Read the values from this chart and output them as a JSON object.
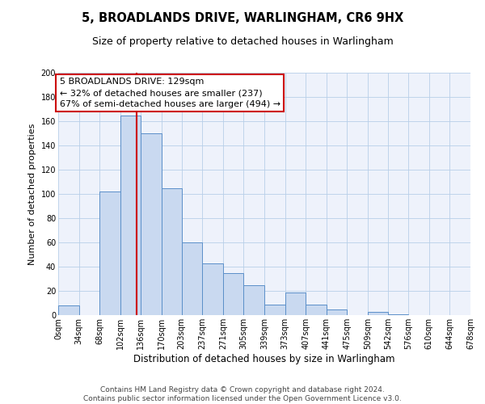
{
  "title": "5, BROADLANDS DRIVE, WARLINGHAM, CR6 9HX",
  "subtitle": "Size of property relative to detached houses in Warlingham",
  "xlabel": "Distribution of detached houses by size in Warlingham",
  "ylabel": "Number of detached properties",
  "bin_edges": [
    0,
    34,
    68,
    102,
    136,
    170,
    203,
    237,
    271,
    305,
    339,
    373,
    407,
    441,
    475,
    509,
    542,
    576,
    610,
    644,
    678
  ],
  "bin_counts": [
    8,
    0,
    102,
    165,
    150,
    105,
    60,
    43,
    35,
    25,
    9,
    19,
    9,
    5,
    0,
    3,
    1,
    0,
    0,
    0
  ],
  "bar_facecolor": "#c9d9f0",
  "bar_edgecolor": "#5b8fc9",
  "property_line_x": 129,
  "property_line_color": "#cc0000",
  "annotation_line1": "5 BROADLANDS DRIVE: 129sqm",
  "annotation_line2": "← 32% of detached houses are smaller (237)",
  "annotation_line3": "67% of semi-detached houses are larger (494) →",
  "annotation_box_facecolor": "#ffffff",
  "annotation_box_edgecolor": "#cc0000",
  "xlim": [
    0,
    678
  ],
  "ylim": [
    0,
    200
  ],
  "yticks": [
    0,
    20,
    40,
    60,
    80,
    100,
    120,
    140,
    160,
    180,
    200
  ],
  "xtick_labels": [
    "0sqm",
    "34sqm",
    "68sqm",
    "102sqm",
    "136sqm",
    "170sqm",
    "203sqm",
    "237sqm",
    "271sqm",
    "305sqm",
    "339sqm",
    "373sqm",
    "407sqm",
    "441sqm",
    "475sqm",
    "509sqm",
    "542sqm",
    "576sqm",
    "610sqm",
    "644sqm",
    "678sqm"
  ],
  "grid_color": "#b8cfe8",
  "background_color": "#eef2fb",
  "footer_text": "Contains HM Land Registry data © Crown copyright and database right 2024.\nContains public sector information licensed under the Open Government Licence v3.0.",
  "title_fontsize": 10.5,
  "subtitle_fontsize": 9,
  "xlabel_fontsize": 8.5,
  "ylabel_fontsize": 8,
  "tick_fontsize": 7,
  "annotation_fontsize": 8,
  "footer_fontsize": 6.5
}
